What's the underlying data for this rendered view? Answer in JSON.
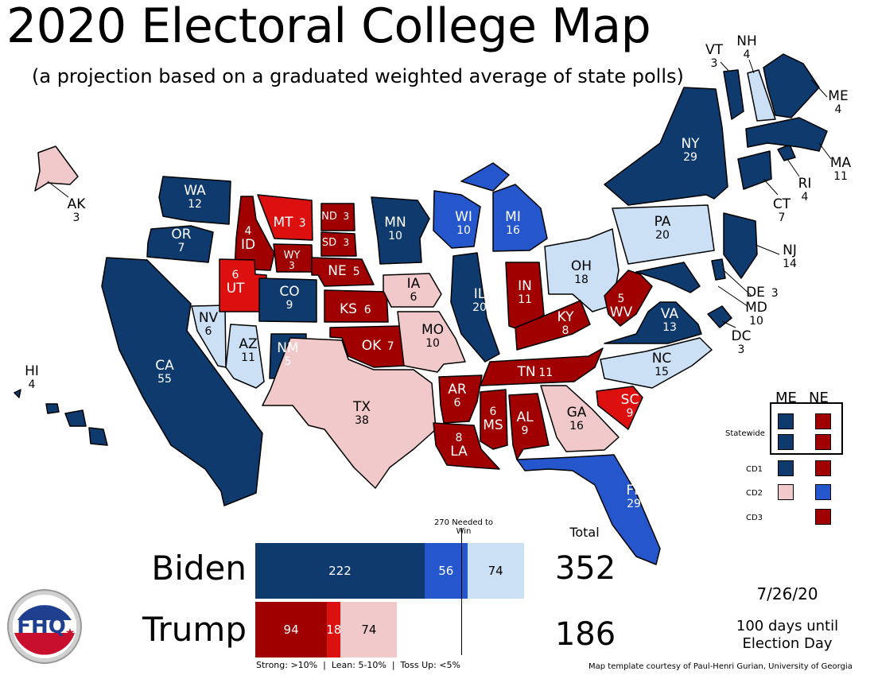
{
  "title": "2020 Electoral College Map",
  "subtitle": "(a projection based on a graduated weighted average of state polls)",
  "colors": {
    "strong_d": "#0f3a6e",
    "lean_d": "#2556cc",
    "tossup_d": "#cce0f5",
    "strong_r": "#a00000",
    "lean_r": "#dd1010",
    "tossup_r": "#f2c9cb"
  },
  "states": [
    {
      "abbr": "WA",
      "ev": "12",
      "rating": "strong_d"
    },
    {
      "abbr": "OR",
      "ev": "7",
      "rating": "strong_d"
    },
    {
      "abbr": "CA",
      "ev": "55",
      "rating": "strong_d"
    },
    {
      "abbr": "NV",
      "ev": "6",
      "rating": "tossup_d"
    },
    {
      "abbr": "ID",
      "ev": "4",
      "rating": "strong_r"
    },
    {
      "abbr": "MT",
      "ev": "3",
      "rating": "lean_r"
    },
    {
      "abbr": "WY",
      "ev": "3",
      "rating": "strong_r"
    },
    {
      "abbr": "UT",
      "ev": "6",
      "rating": "lean_r"
    },
    {
      "abbr": "AZ",
      "ev": "11",
      "rating": "tossup_d"
    },
    {
      "abbr": "CO",
      "ev": "9",
      "rating": "strong_d"
    },
    {
      "abbr": "NM",
      "ev": "5",
      "rating": "strong_d"
    },
    {
      "abbr": "ND",
      "ev": "3",
      "rating": "strong_r"
    },
    {
      "abbr": "SD",
      "ev": "3",
      "rating": "strong_r"
    },
    {
      "abbr": "NE",
      "ev": "5",
      "rating": "strong_r"
    },
    {
      "abbr": "KS",
      "ev": "6",
      "rating": "strong_r"
    },
    {
      "abbr": "OK",
      "ev": "7",
      "rating": "strong_r"
    },
    {
      "abbr": "TX",
      "ev": "38",
      "rating": "tossup_r"
    },
    {
      "abbr": "MN",
      "ev": "10",
      "rating": "strong_d"
    },
    {
      "abbr": "IA",
      "ev": "6",
      "rating": "tossup_r"
    },
    {
      "abbr": "MO",
      "ev": "10",
      "rating": "tossup_r"
    },
    {
      "abbr": "AR",
      "ev": "6",
      "rating": "strong_r"
    },
    {
      "abbr": "LA",
      "ev": "8",
      "rating": "strong_r"
    },
    {
      "abbr": "WI",
      "ev": "10",
      "rating": "lean_d"
    },
    {
      "abbr": "IL",
      "ev": "20",
      "rating": "strong_d"
    },
    {
      "abbr": "MI",
      "ev": "16",
      "rating": "lean_d"
    },
    {
      "abbr": "IN",
      "ev": "11",
      "rating": "strong_r"
    },
    {
      "abbr": "OH",
      "ev": "18",
      "rating": "tossup_d"
    },
    {
      "abbr": "KY",
      "ev": "8",
      "rating": "strong_r"
    },
    {
      "abbr": "TN",
      "ev": "11",
      "rating": "strong_r"
    },
    {
      "abbr": "MS",
      "ev": "6",
      "rating": "strong_r"
    },
    {
      "abbr": "AL",
      "ev": "9",
      "rating": "strong_r"
    },
    {
      "abbr": "GA",
      "ev": "16",
      "rating": "tossup_r"
    },
    {
      "abbr": "FL",
      "ev": "29",
      "rating": "lean_d"
    },
    {
      "abbr": "SC",
      "ev": "9",
      "rating": "lean_r"
    },
    {
      "abbr": "NC",
      "ev": "15",
      "rating": "tossup_d"
    },
    {
      "abbr": "VA",
      "ev": "13",
      "rating": "strong_d"
    },
    {
      "abbr": "WV",
      "ev": "5",
      "rating": "strong_r"
    },
    {
      "abbr": "PA",
      "ev": "20",
      "rating": "tossup_d"
    },
    {
      "abbr": "NY",
      "ev": "29",
      "rating": "strong_d"
    },
    {
      "abbr": "NJ",
      "ev": "14",
      "rating": "strong_d"
    },
    {
      "abbr": "DE",
      "ev": "3",
      "rating": "strong_d"
    },
    {
      "abbr": "MD",
      "ev": "10",
      "rating": "strong_d"
    },
    {
      "abbr": "DC",
      "ev": "3",
      "rating": "strong_d"
    },
    {
      "abbr": "CT",
      "ev": "7",
      "rating": "strong_d"
    },
    {
      "abbr": "RI",
      "ev": "4",
      "rating": "strong_d"
    },
    {
      "abbr": "MA",
      "ev": "11",
      "rating": "strong_d"
    },
    {
      "abbr": "VT",
      "ev": "3",
      "rating": "strong_d"
    },
    {
      "abbr": "NH",
      "ev": "4",
      "rating": "tossup_d"
    },
    {
      "abbr": "ME",
      "ev": "4",
      "rating": "strong_d"
    },
    {
      "abbr": "AK",
      "ev": "3",
      "rating": "tossup_r"
    },
    {
      "abbr": "HI",
      "ev": "4",
      "rating": "strong_d"
    }
  ],
  "chart_data": {
    "type": "bar",
    "threshold_label": "270 Needed to Win",
    "threshold_value": 270,
    "total_header": "Total",
    "series": [
      {
        "name": "Biden",
        "segments": [
          {
            "category": "Strong",
            "value": 222
          },
          {
            "category": "Lean",
            "value": 56
          },
          {
            "category": "Toss Up",
            "value": 74
          }
        ],
        "total": 352
      },
      {
        "name": "Trump",
        "segments": [
          {
            "category": "Strong",
            "value": 94
          },
          {
            "category": "Lean",
            "value": 18
          },
          {
            "category": "Toss Up",
            "value": 74
          }
        ],
        "total": 186
      }
    ],
    "footnote": "Strong: >10%  |  Lean: 5-10%  |  Toss Up: <5%"
  },
  "legend": {
    "col_me": "ME",
    "col_ne": "NE",
    "rows": [
      {
        "label": "Statewide",
        "me": "strong_d",
        "ne": "strong_r"
      },
      {
        "label": "CD1",
        "me": "strong_d",
        "ne": "strong_r"
      },
      {
        "label": "CD2",
        "me": "tossup_r",
        "ne": "lean_d"
      },
      {
        "label": "CD3",
        "me": "",
        "ne": "strong_r"
      }
    ]
  },
  "date": "7/26/20",
  "days_until": "100 days until",
  "election_day": "Election Day",
  "credit": "Map template courtesy of Paul-Henri Gurian, University of Georgia",
  "logo_text": "FHQ"
}
